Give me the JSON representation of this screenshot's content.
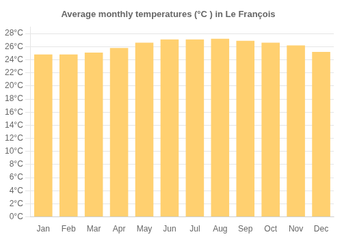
{
  "chart_data": {
    "type": "bar",
    "title": "Average monthly temperatures (°C ) in Le François",
    "categories": [
      "Jan",
      "Feb",
      "Mar",
      "Apr",
      "May",
      "Jun",
      "Jul",
      "Aug",
      "Sep",
      "Oct",
      "Nov",
      "Dec"
    ],
    "values": [
      24.8,
      24.8,
      25.1,
      25.8,
      26.6,
      27.1,
      27.1,
      27.2,
      26.9,
      26.6,
      26.2,
      25.2
    ],
    "color": "#FFD070",
    "ylim": [
      0,
      29
    ],
    "yticks": [
      {
        "value": 0,
        "label": "0°C"
      },
      {
        "value": 2,
        "label": "2°C"
      },
      {
        "value": 4,
        "label": "4°C"
      },
      {
        "value": 6,
        "label": "6°C"
      },
      {
        "value": 8,
        "label": "8°C"
      },
      {
        "value": 10,
        "label": "10°C"
      },
      {
        "value": 12,
        "label": "12°C"
      },
      {
        "value": 14,
        "label": "14°C"
      },
      {
        "value": 16,
        "label": "16°C"
      },
      {
        "value": 18,
        "label": "18°C"
      },
      {
        "value": 20,
        "label": "20°C"
      },
      {
        "value": 22,
        "label": "22°C"
      },
      {
        "value": 24,
        "label": "24°C"
      },
      {
        "value": 26,
        "label": "26°C"
      },
      {
        "value": 28,
        "label": "28°C"
      }
    ],
    "grid": true
  }
}
